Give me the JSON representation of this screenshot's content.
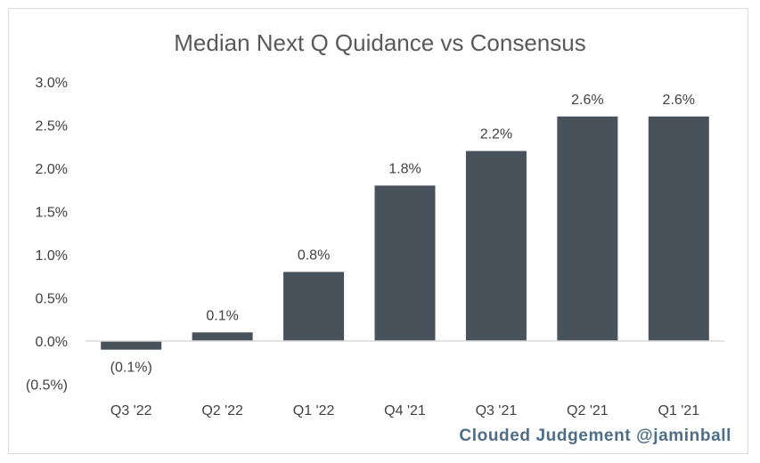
{
  "chart_data": {
    "type": "bar",
    "title": "Median Next Q Quidance vs Consensus",
    "xlabel": "",
    "ylabel": "",
    "categories": [
      "Q3 '22",
      "Q2 '22",
      "Q1 '22",
      "Q4 '21",
      "Q3 '21",
      "Q2 '21",
      "Q1 '21"
    ],
    "values": [
      -0.1,
      0.1,
      0.8,
      1.8,
      2.2,
      2.6,
      2.6
    ],
    "data_labels": [
      "(0.1%)",
      "0.1%",
      "0.8%",
      "1.8%",
      "2.2%",
      "2.6%",
      "2.6%"
    ],
    "ylim": [
      -0.5,
      3.0
    ],
    "yticks": [
      3.0,
      2.5,
      2.0,
      1.5,
      1.0,
      0.5,
      0.0,
      -0.5
    ],
    "ytick_labels": [
      "3.0%",
      "2.5%",
      "2.0%",
      "1.5%",
      "1.0%",
      "0.5%",
      "0.0%",
      "(0.5%)"
    ],
    "grid": false,
    "legend": "none",
    "bar_color": "#48525b",
    "axis_color": "#d9d9d9"
  },
  "watermark": "Clouded Judgement @jaminball"
}
